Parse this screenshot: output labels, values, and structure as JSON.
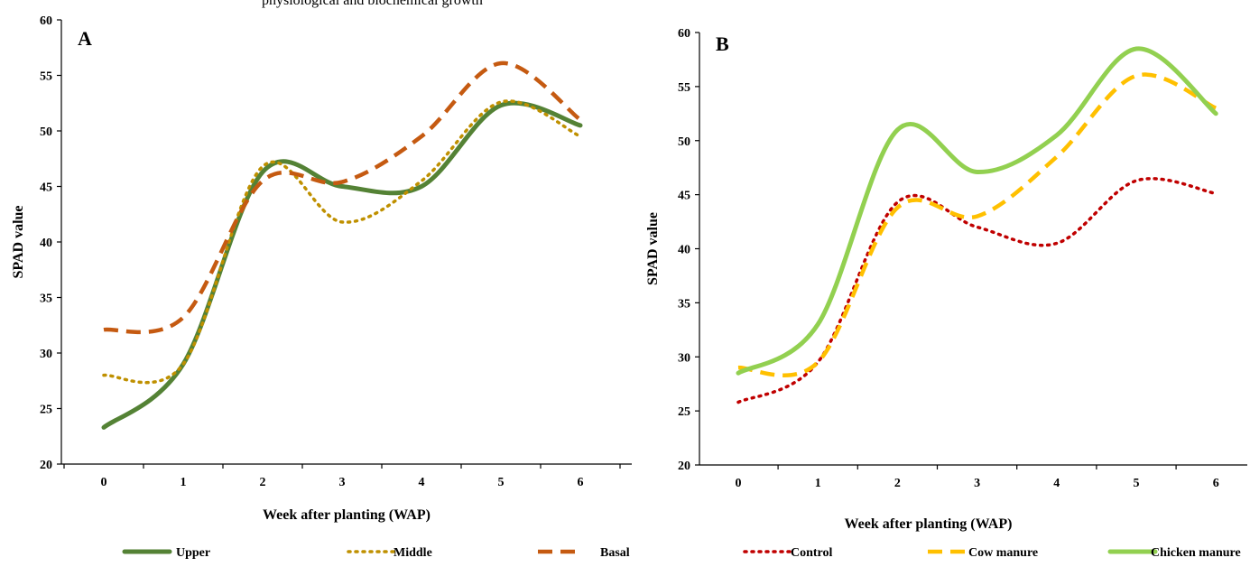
{
  "header_fragment": "physiological and biochemical growth",
  "chart_data": [
    {
      "type": "line",
      "panel_label": "A",
      "x": [
        0,
        1,
        2,
        3,
        4,
        5,
        6
      ],
      "categories": [
        "0",
        "1",
        "2",
        "3",
        "4",
        "5",
        "6"
      ],
      "xlabel": "Week after planting (WAP)",
      "ylabel": "SPAD value",
      "ylim": [
        20,
        60
      ],
      "yticks": [
        20,
        25,
        30,
        35,
        40,
        45,
        50,
        55,
        60
      ],
      "legend_position": "bottom",
      "series": [
        {
          "name": "Upper",
          "values": [
            23.3,
            29.0,
            46.3,
            45.0,
            45.0,
            52.3,
            50.5
          ],
          "color": "#548235",
          "style": "solid"
        },
        {
          "name": "Middle",
          "values": [
            28.0,
            29.0,
            46.8,
            41.8,
            45.5,
            52.6,
            49.5
          ],
          "color": "#BF9000",
          "style": "dotted"
        },
        {
          "name": "Basal",
          "values": [
            32.1,
            33.2,
            45.5,
            45.4,
            49.5,
            56.1,
            51.0
          ],
          "color": "#C55A11",
          "style": "dashed"
        }
      ]
    },
    {
      "type": "line",
      "panel_label": "B",
      "x": [
        0,
        1,
        2,
        3,
        4,
        5,
        6
      ],
      "categories": [
        "0",
        "1",
        "2",
        "3",
        "4",
        "5",
        "6"
      ],
      "xlabel": "Week after planting (WAP)",
      "ylabel": "SPAD value",
      "ylim": [
        20,
        60
      ],
      "yticks": [
        20,
        25,
        30,
        35,
        40,
        45,
        50,
        55,
        60
      ],
      "legend_position": "bottom",
      "series": [
        {
          "name": "Control",
          "values": [
            25.8,
            29.5,
            44.3,
            42.0,
            40.5,
            46.3,
            45.1
          ],
          "color": "#C00000",
          "style": "dotted"
        },
        {
          "name": "Cow manure",
          "values": [
            29.0,
            29.5,
            43.8,
            43.0,
            48.5,
            56.0,
            53.0
          ],
          "color": "#FFC000",
          "style": "dashed"
        },
        {
          "name": "Chicken manure",
          "values": [
            28.5,
            33.0,
            51.0,
            47.1,
            50.5,
            58.5,
            52.5
          ],
          "color": "#92D050",
          "style": "solid"
        }
      ]
    }
  ]
}
